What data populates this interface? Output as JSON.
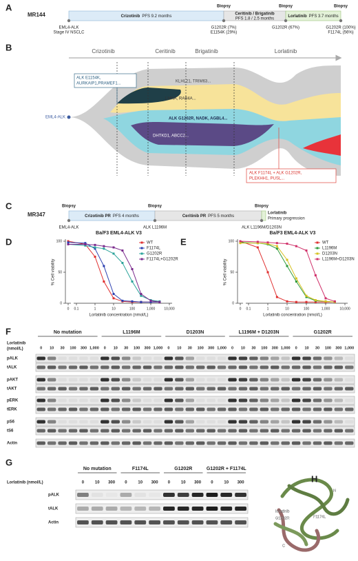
{
  "panel_labels": [
    "A",
    "B",
    "C",
    "D",
    "E",
    "F",
    "G",
    "H"
  ],
  "panel_a": {
    "patient": "MR144",
    "start_notes": [
      "EML4-ALK",
      "Stage IV NSCLC"
    ],
    "treatments": [
      {
        "drug": "Crizotinib",
        "outcome": "PFS 9.2 months"
      },
      {
        "drug": "Ceritinib / Brigatinib",
        "outcome": "PFS 1.8 / 2.5 months"
      },
      {
        "drug": "Lorlatinib",
        "outcome": "PFS 3.7 months"
      }
    ],
    "biopsies": [
      {
        "label": "Biopsy",
        "notes": [
          "G1202R (7%)",
          "E1154K (29%)"
        ]
      },
      {
        "label": "Biopsy",
        "notes": [
          "G1202R (67%)"
        ]
      },
      {
        "label": "Biopsy",
        "notes": [
          "G1202R (100%)",
          "F1174L (56%)"
        ]
      }
    ]
  },
  "panel_b": {
    "phases": [
      "Crizotinib",
      "Ceritinib",
      "Brigatinib",
      "Lorlatinib"
    ],
    "origin": "EML4-ALK",
    "clones": [
      "KLHL21, TRIM63...",
      "LMNA, RAB4A...",
      "ALK G1202R, NADK, AGBL4...",
      "DHTKD1, ABCC2..."
    ],
    "callouts": [
      [
        "ALK E1154K,",
        "AURKAIP1,PRAMEF1..."
      ],
      [
        "ALK F1174L + ALK G1202R,",
        "PLEKHH1, PUSL..."
      ]
    ]
  },
  "panel_c": {
    "patient": "MR347",
    "treatments": [
      {
        "drug": "Crizotinib PR",
        "outcome": "PFS 4 months"
      },
      {
        "drug": "Ceritinib PR",
        "outcome": "PFS 5 months"
      },
      {
        "drug": "Lorlatinib",
        "outcome": "Primary progression"
      }
    ],
    "biopsies": [
      {
        "label": "Biopsy",
        "note": "EML4-ALK"
      },
      {
        "label": "Biopsy",
        "note": "ALK L1196M"
      },
      {
        "label": "Biopsy",
        "note": "ALK L1196M/D1203N"
      }
    ]
  },
  "chart_data": [
    {
      "type": "line",
      "title": "Ba/F3 EML4-ALK V3",
      "xlabel": "Lorlatinib concentration (nmol/L)",
      "ylabel": "% Cell viability",
      "log_x": true,
      "x": [
        0,
        0.3,
        1,
        3,
        10,
        30,
        100,
        300,
        1000,
        3000
      ],
      "series": [
        {
          "name": "WT",
          "color": "#e03030",
          "values": [
            100,
            95,
            75,
            35,
            8,
            3,
            2,
            2,
            2,
            2
          ]
        },
        {
          "name": "F1174L",
          "color": "#2b3fb0",
          "values": [
            98,
            97,
            88,
            60,
            15,
            4,
            3,
            2,
            2,
            2
          ]
        },
        {
          "name": "G1202R",
          "color": "#2aa39a",
          "values": [
            95,
            93,
            90,
            88,
            80,
            65,
            35,
            12,
            5,
            3
          ]
        },
        {
          "name": "F1174L+G1202R",
          "color": "#7a2a8c",
          "values": [
            95,
            95,
            94,
            92,
            90,
            85,
            55,
            15,
            4,
            2
          ]
        }
      ],
      "xlim": [
        0,
        10000
      ],
      "ylim": [
        0,
        100
      ],
      "xticks": [
        0,
        0.1,
        1,
        10,
        100,
        {
          "value": 1000,
          "label": "1,000"
        },
        {
          "value": 10000,
          "label": "10,000"
        }
      ],
      "yticks": [
        0,
        50,
        100
      ]
    },
    {
      "type": "line",
      "title": "Ba/F3 EML4-ALK V3",
      "xlabel": "Lorlatinib concentration (nmol/L)",
      "ylabel": "% Cell viability",
      "log_x": true,
      "x": [
        0,
        0.3,
        1,
        3,
        10,
        30,
        100,
        300,
        1000,
        3000
      ],
      "series": [
        {
          "name": "WT",
          "color": "#e03030",
          "values": [
            100,
            90,
            50,
            10,
            3,
            2,
            2,
            2,
            2,
            2
          ]
        },
        {
          "name": "L1196M",
          "color": "#2e9a3a",
          "values": [
            98,
            97,
            95,
            88,
            60,
            35,
            10,
            4,
            3,
            2
          ]
        },
        {
          "name": "D1203N",
          "color": "#d6c21e",
          "values": [
            97,
            97,
            96,
            92,
            70,
            40,
            12,
            5,
            3,
            2
          ]
        },
        {
          "name": "L1196M+D1203N",
          "color": "#d0306a",
          "values": [
            100,
            99,
            98,
            97,
            96,
            92,
            85,
            45,
            8,
            3
          ]
        }
      ],
      "xlim": [
        0,
        10000
      ],
      "ylim": [
        0,
        100
      ],
      "xticks": [
        0,
        0.1,
        1,
        10,
        100,
        {
          "value": 1000,
          "label": "1,000"
        },
        {
          "value": 10000,
          "label": "10,000"
        }
      ],
      "yticks": [
        0,
        50,
        100
      ]
    }
  ],
  "panel_f": {
    "treatment": "Lorlatinib",
    "unit": "(nmol/L)",
    "groups": [
      {
        "name": "No mutation",
        "doses": [
          "0",
          "10",
          "30",
          "100",
          "300",
          "1,000"
        ]
      },
      {
        "name": "L1196M",
        "doses": [
          "0",
          "10",
          "30",
          "100",
          "300",
          "1,000"
        ]
      },
      {
        "name": "D1203N",
        "doses": [
          "0",
          "10",
          "30",
          "100",
          "300",
          "1,000"
        ]
      },
      {
        "name": "L1196M + D1203N",
        "doses": [
          "0",
          "10",
          "30",
          "100",
          "300",
          "1,000"
        ]
      },
      {
        "name": "G1202R",
        "doses": [
          "0",
          "10",
          "30",
          "100",
          "300",
          "1,000"
        ]
      }
    ],
    "proteins": [
      "pALK",
      "tALK",
      "pAKT",
      "tAKT",
      "pERK",
      "tERK",
      "pS6",
      "tS6",
      "Actin"
    ]
  },
  "panel_g": {
    "treatment": "Lorlatinib (nmol/L)",
    "groups": [
      {
        "name": "No mutation",
        "doses": [
          "0",
          "10",
          "300"
        ]
      },
      {
        "name": "F1174L",
        "doses": [
          "0",
          "10",
          "300"
        ]
      },
      {
        "name": "G1202R",
        "doses": [
          "0",
          "10",
          "300"
        ]
      },
      {
        "name": "G1202R + F1174L",
        "doses": [
          "0",
          "10",
          "300"
        ]
      }
    ],
    "proteins": [
      "pALK",
      "tALK",
      "Actin"
    ]
  },
  "panel_h": {
    "labels": [
      "N",
      "C",
      "lorlatinib",
      "G1202R",
      "F1174L"
    ]
  }
}
